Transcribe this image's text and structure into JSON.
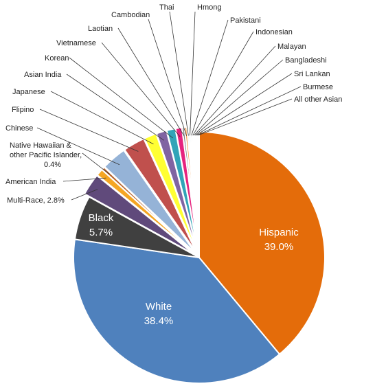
{
  "chart_data": {
    "type": "pie",
    "title": "",
    "slices": [
      {
        "label": "Hispanic",
        "value": 39.0,
        "value_label": "39.0%",
        "color": "#E46C0A",
        "exploded": false,
        "label_mode": "inside"
      },
      {
        "label": "White",
        "value": 38.4,
        "value_label": "38.4%",
        "color": "#4F81BD",
        "exploded": false,
        "label_mode": "inside"
      },
      {
        "label": "Black",
        "value": 5.7,
        "value_label": "5.7%",
        "color": "#404040",
        "exploded": false,
        "label_mode": "inside"
      },
      {
        "label": "Multi-Race, 2.8%",
        "value": 2.8,
        "color": "#604A7B",
        "exploded": true,
        "label_mode": "outside"
      },
      {
        "label": "American India",
        "value": 0.9,
        "color": "#F5A623",
        "exploded": true,
        "label_mode": "outside"
      },
      {
        "label": "Native Hawaiian & other Pacific Islander, 0.4%",
        "label_lines": [
          "Native Hawaiian  &",
          "other Pacific Islander,",
          "0.4%"
        ],
        "value": 0.4,
        "color": "#B7632B",
        "exploded": true,
        "label_mode": "outside"
      },
      {
        "label": "Chinese",
        "value": 3.2,
        "color": "#95B3D7",
        "exploded": true,
        "label_mode": "outside"
      },
      {
        "label": "Flipino",
        "value": 2.8,
        "color": "#C0504D",
        "exploded": true,
        "label_mode": "outside"
      },
      {
        "label": "Japanese",
        "value": 1.6,
        "color": "#FFFF33",
        "exploded": true,
        "label_mode": "outside"
      },
      {
        "label": "Asian India",
        "value": 1.3,
        "color": "#8064A2",
        "exploded": true,
        "label_mode": "outside"
      },
      {
        "label": "Korean",
        "value": 1.1,
        "color": "#31A4B8",
        "exploded": true,
        "label_mode": "outside"
      },
      {
        "label": "Vietnamese",
        "value": 0.8,
        "color": "#E6237E",
        "exploded": true,
        "label_mode": "outside"
      },
      {
        "label": "Laotian",
        "value": 0.3,
        "color": "#7F7F7F",
        "exploded": true,
        "label_mode": "outside"
      },
      {
        "label": "Cambodian",
        "value": 0.3,
        "color": "#F79646",
        "exploded": true,
        "label_mode": "outside"
      },
      {
        "label": "Thai",
        "value": 0.2,
        "color": "#9BBB59",
        "exploded": true,
        "label_mode": "outside"
      },
      {
        "label": "Hmong",
        "value": 0.2,
        "color": "#4BACC6",
        "exploded": true,
        "label_mode": "outside"
      },
      {
        "label": "Pakistani",
        "value": 0.2,
        "color": "#A5A5A5",
        "exploded": true,
        "label_mode": "outside"
      },
      {
        "label": "Indonesian",
        "value": 0.15,
        "color": "#1F497D",
        "exploded": true,
        "label_mode": "outside"
      },
      {
        "label": "Malayan",
        "value": 0.15,
        "color": "#C3D69B",
        "exploded": true,
        "label_mode": "outside"
      },
      {
        "label": "Bangladeshi",
        "value": 0.15,
        "color": "#FAC090",
        "exploded": true,
        "label_mode": "outside"
      },
      {
        "label": "Sri Lankan",
        "value": 0.15,
        "color": "#B3A2C7",
        "exploded": true,
        "label_mode": "outside"
      },
      {
        "label": "Burmese",
        "value": 0.15,
        "color": "#92CDDC",
        "exploded": true,
        "label_mode": "outside"
      },
      {
        "label": "All other Asian",
        "value": 0.15,
        "color": "#D99694",
        "exploded": true,
        "label_mode": "outside"
      }
    ],
    "legend": "none",
    "label_style": "leader-lines"
  }
}
